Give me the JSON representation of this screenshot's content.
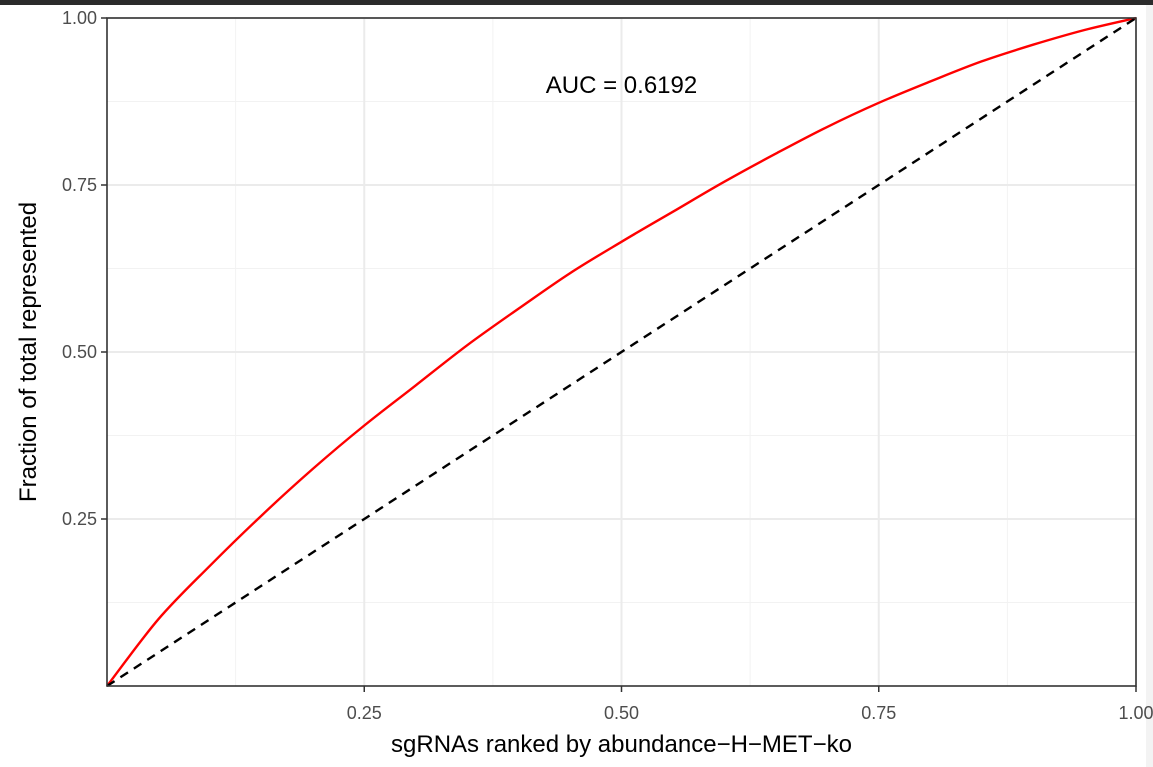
{
  "chart_data": {
    "type": "line",
    "title": "",
    "xlabel": "sgRNAs ranked by abundance−H−MET−ko",
    "ylabel": "Fraction of total represented",
    "xlim": [
      0,
      1
    ],
    "ylim": [
      0,
      1
    ],
    "x_ticks": [
      "0.25",
      "0.50",
      "0.75",
      "1.00"
    ],
    "y_ticks": [
      "0.25",
      "0.50",
      "0.75",
      "1.00"
    ],
    "grid": true,
    "annotation": "AUC = 0.6192",
    "series": [
      {
        "color": "#ff0000",
        "style": "solid",
        "x": [
          0,
          0.05,
          0.1,
          0.15,
          0.2,
          0.25,
          0.3,
          0.35,
          0.4,
          0.45,
          0.5,
          0.55,
          0.6,
          0.65,
          0.7,
          0.75,
          0.8,
          0.85,
          0.9,
          0.95,
          1.0
        ],
        "y": [
          0,
          0.1,
          0.18,
          0.255,
          0.325,
          0.39,
          0.45,
          0.51,
          0.565,
          0.618,
          0.665,
          0.71,
          0.755,
          0.797,
          0.837,
          0.873,
          0.905,
          0.935,
          0.96,
          0.982,
          1.0
        ]
      },
      {
        "color": "#000000",
        "style": "dashed",
        "x": [
          0,
          1
        ],
        "y": [
          0,
          1
        ]
      }
    ]
  }
}
